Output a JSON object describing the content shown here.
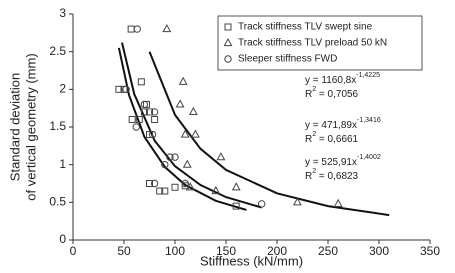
{
  "chart_data": {
    "type": "scatter",
    "x_label": "Stiffness (kN/mm)",
    "y_label": [
      "Standard deviation",
      "of vertical geometry (mm)"
    ],
    "xlim": [
      0,
      350
    ],
    "xticks": [
      0,
      50,
      100,
      150,
      200,
      250,
      300,
      350
    ],
    "ylim": [
      0,
      3
    ],
    "yticks": [
      0,
      0.5,
      1,
      1.5,
      2,
      2.5,
      3
    ],
    "grid": false,
    "legend": "upper right",
    "series": [
      {
        "name": "Track stiffness TLV swept sine",
        "marker": "square",
        "color": "#444444",
        "x": [
          57,
          50,
          45,
          67,
          70,
          75,
          58,
          65,
          75,
          72,
          80,
          75,
          85,
          90,
          100,
          110,
          160
        ],
        "values": [
          2.8,
          2.0,
          2.0,
          2.1,
          1.7,
          1.7,
          1.6,
          1.6,
          1.4,
          1.8,
          1.6,
          0.75,
          0.65,
          0.65,
          0.7,
          0.72,
          0.45
        ]
      },
      {
        "name": "Track stiffness TLV preload 50 kN",
        "marker": "triangle",
        "color": "#444444",
        "x": [
          92,
          108,
          105,
          118,
          110,
          120,
          112,
          145,
          160,
          140,
          220,
          260,
          115
        ],
        "values": [
          2.8,
          2.1,
          1.8,
          1.7,
          1.4,
          1.4,
          1.0,
          1.1,
          0.7,
          0.65,
          0.5,
          0.48,
          0.7
        ]
      },
      {
        "name": "Sleeper stiffness FWD",
        "marker": "circle",
        "color": "#444444",
        "x": [
          63,
          52,
          70,
          80,
          78,
          62,
          100,
          90,
          80,
          110,
          185,
          95
        ],
        "values": [
          2.8,
          2.0,
          1.8,
          1.7,
          1.4,
          1.5,
          1.1,
          1.0,
          0.75,
          0.75,
          0.48,
          1.1
        ]
      }
    ],
    "fits": [
      {
        "color": "#111111",
        "x": [
          75,
          100,
          125,
          150,
          200,
          250,
          310
        ],
        "values": [
          2.5,
          1.66,
          1.21,
          0.93,
          0.62,
          0.45,
          0.33
        ],
        "equation": "y = 1160,8x",
        "exponent": "-1,4225",
        "r2_label": "R",
        "r2_exponent": "2",
        "r2_value": " = 0,7056"
      },
      {
        "color": "#111111",
        "x": [
          48,
          60,
          80,
          100,
          125,
          150,
          185
        ],
        "values": [
          2.62,
          1.94,
          1.32,
          0.98,
          0.73,
          0.57,
          0.43
        ],
        "equation": "y = 471,89x",
        "exponent": "-1,3416",
        "r2_label": "R",
        "r2_exponent": "2",
        "r2_value": " = 0,6661"
      },
      {
        "color": "#111111",
        "x": [
          45,
          55,
          70,
          90,
          110,
          140,
          170
        ],
        "values": [
          2.55,
          1.92,
          1.37,
          0.97,
          0.73,
          0.52,
          0.4
        ],
        "equation": "y = 525,91x",
        "exponent": "-1,4002",
        "r2_label": "R",
        "r2_exponent": "2",
        "r2_value": " = 0,6823"
      }
    ]
  }
}
